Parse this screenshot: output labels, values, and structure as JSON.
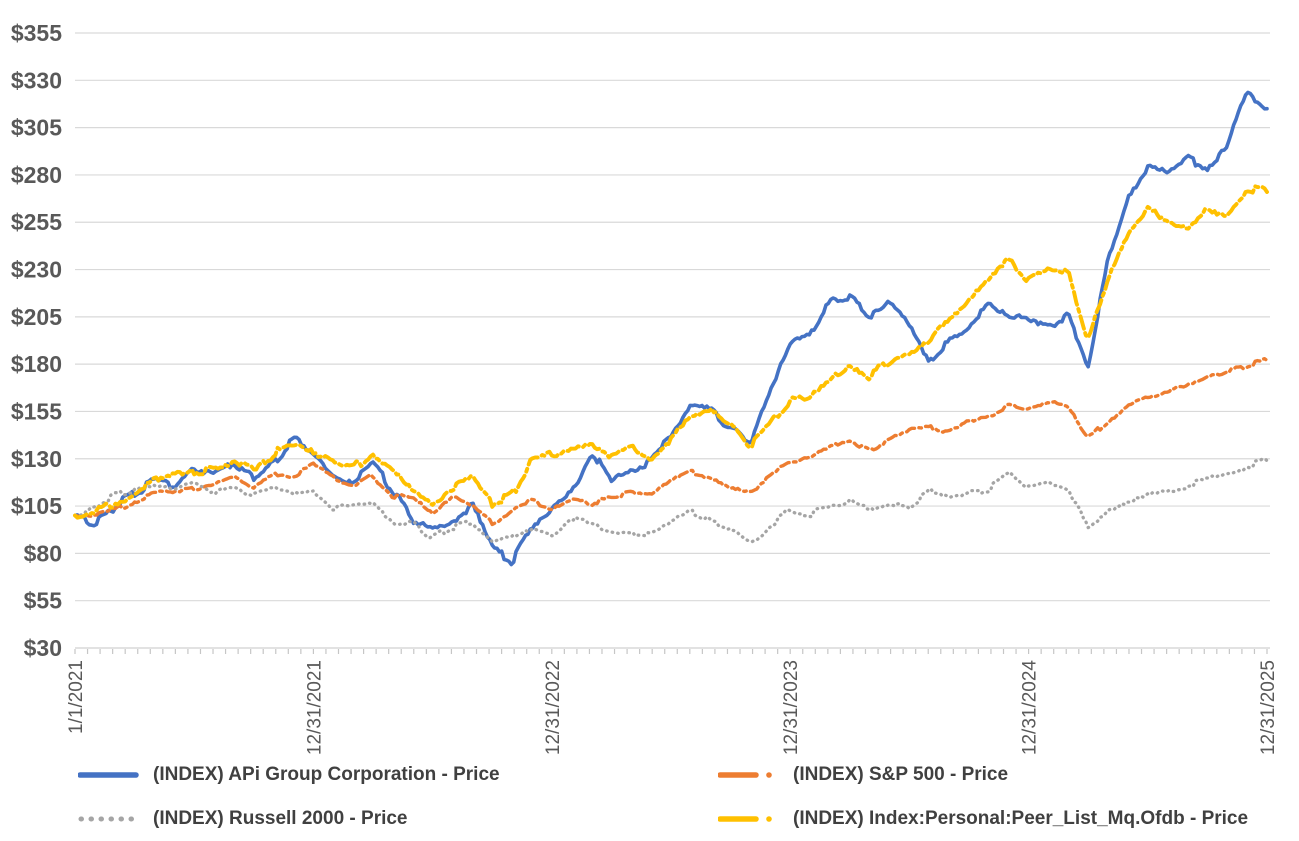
{
  "chart_data": {
    "type": "line",
    "title": "",
    "grid": "horizontal",
    "legend_position": "bottom",
    "x": {
      "label": "",
      "unit": "months since 1/1/2021",
      "range_months": [
        0,
        60
      ],
      "tick_positions_months": [
        0,
        12,
        24,
        36,
        48,
        60
      ],
      "tick_labels": [
        "1/1/2021",
        "12/31/2021",
        "12/31/2022",
        "12/31/2023",
        "12/31/2024",
        "12/31/2025"
      ]
    },
    "y": {
      "label": "",
      "min": 30,
      "max": 355,
      "step": 25,
      "tick_labels": [
        "$30",
        "$55",
        "$80",
        "$105",
        "$130",
        "$155",
        "$180",
        "$205",
        "$230",
        "$255",
        "$280",
        "$305",
        "$330",
        "$355"
      ]
    },
    "axis_text_color": "#595959",
    "legend_text_color": "#404040",
    "gridline_color": "#D9D9D9",
    "series": [
      {
        "name": "(INDEX) APi Group Corporation - Price",
        "color": "#4472C4",
        "style": "solid",
        "values": [
          100,
          96,
          104,
          112,
          118,
          116,
          125,
          122,
          127,
          119,
          127,
          141,
          132,
          123,
          118,
          127,
          113,
          97,
          93,
          98,
          106,
          84,
          76,
          95,
          103,
          112,
          134,
          118,
          125,
          128,
          143,
          159,
          155,
          147,
          139,
          167,
          190,
          196,
          213,
          216,
          206,
          213,
          199,
          182,
          193,
          201,
          212,
          207,
          204,
          200,
          206,
          179,
          235,
          266,
          284,
          280,
          288,
          284,
          295,
          324,
          315
        ]
      },
      {
        "name": "(INDEX) S&P 500 - Price",
        "color": "#ED7D31",
        "style": "dash-dot",
        "values": [
          100,
          100,
          103,
          107,
          112,
          112,
          114,
          117,
          120,
          114,
          122,
          121,
          127,
          120,
          116,
          121,
          110,
          110,
          101,
          110,
          105,
          96,
          103,
          108,
          103,
          108,
          106,
          110,
          112,
          112,
          119,
          123,
          120,
          114,
          112,
          122,
          128,
          130,
          136,
          140,
          134,
          140,
          145,
          147,
          144,
          151,
          152,
          158,
          156,
          160,
          157,
          141,
          150,
          158,
          163,
          166,
          169,
          173,
          176,
          179,
          182
        ]
      },
      {
        "name": "(INDEX) Russell 2000 - Price",
        "color": "#A5A5A5",
        "style": "dotted",
        "values": [
          100,
          105,
          111,
          113,
          115,
          114,
          116,
          112,
          114,
          110,
          114,
          112,
          114,
          104,
          105,
          106,
          96,
          96,
          88,
          94,
          96,
          86,
          88,
          94,
          90,
          98,
          96,
          92,
          90,
          91,
          96,
          102,
          97,
          93,
          86,
          94,
          103,
          101,
          104,
          108,
          102,
          106,
          104,
          113,
          110,
          112,
          114,
          123,
          115,
          117,
          113,
          93,
          102,
          108,
          111,
          113,
          116,
          119,
          121,
          126,
          129
        ]
      },
      {
        "name": "(INDEX) Index:Personal:Peer_List_Mq.Ofdb - Price",
        "color": "#FFC000",
        "style": "dash-dot",
        "values": [
          100,
          103,
          107,
          112,
          118,
          121,
          124,
          124,
          128,
          124,
          133,
          137,
          134,
          127,
          125,
          133,
          125,
          113,
          106,
          114,
          119,
          106,
          111,
          129,
          132,
          135,
          138,
          131,
          136,
          130,
          140,
          151,
          156,
          149,
          137,
          148,
          160,
          163,
          170,
          180,
          174,
          182,
          187,
          194,
          204,
          214,
          226,
          236,
          224,
          230,
          228,
          192,
          225,
          248,
          262,
          255,
          250,
          262,
          258,
          272,
          271
        ]
      }
    ]
  }
}
